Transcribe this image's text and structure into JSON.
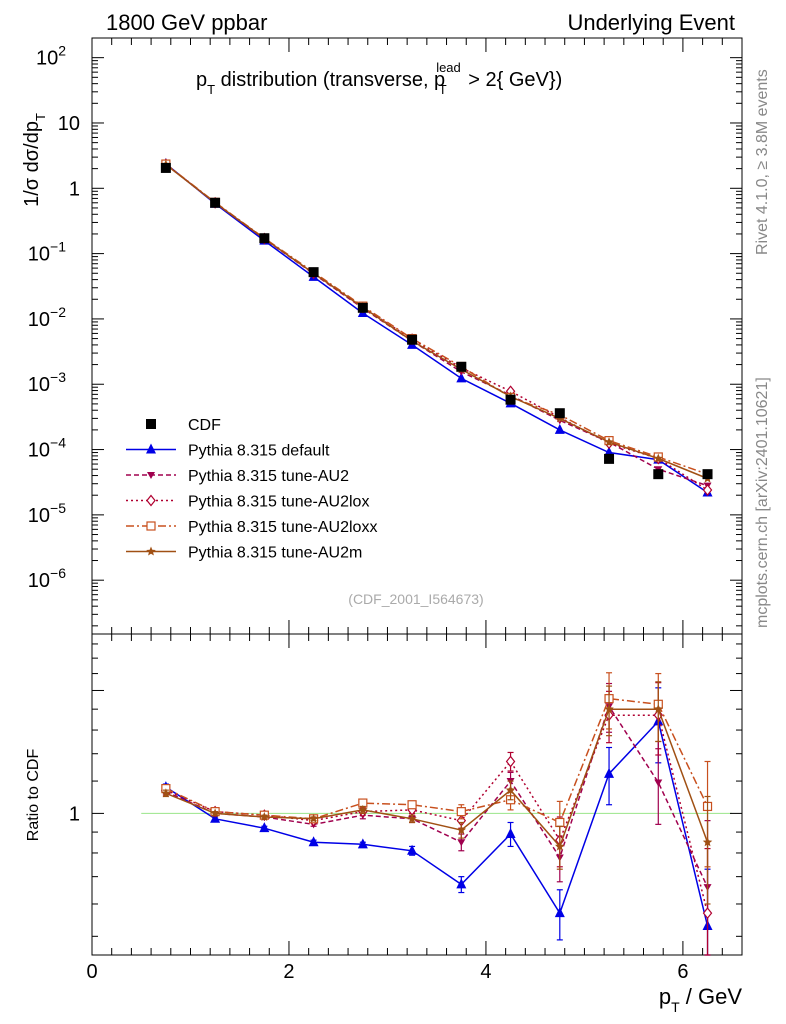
{
  "header": {
    "left": "1800 GeV ppbar",
    "right": "Underlying Event",
    "side_top": "Rivet 4.1.0, ≥ 3.8M events",
    "side_bottom": "mcplots.cern.ch [arXiv:2401.10621]"
  },
  "chart_data": [
    {
      "type": "line",
      "panel": "main",
      "title": "p_T distribution (transverse, p_T^lead > 2{ GeV})",
      "title_parts": {
        "p": "p",
        "t": "T",
        "mid": " distribution (transverse, p",
        "sup": "lead",
        "sub": "T",
        "end": " > 2{ GeV})"
      },
      "ylabel": "1/σ  dσ/dp_T",
      "yscale": "log",
      "ylim": [
        1.5e-07,
        200
      ],
      "xlim": [
        0,
        6.6
      ],
      "yticks": [
        {
          "v": 100,
          "m": "10",
          "e": "2"
        },
        {
          "v": 10,
          "m": "10",
          "e": ""
        },
        {
          "v": 1,
          "m": "1",
          "e": ""
        },
        {
          "v": 0.1,
          "m": "10",
          "e": "−1"
        },
        {
          "v": 0.01,
          "m": "10",
          "e": "−2"
        },
        {
          "v": 0.001,
          "m": "10",
          "e": "−3"
        },
        {
          "v": 0.0001,
          "m": "10",
          "e": "−4"
        },
        {
          "v": 1e-05,
          "m": "10",
          "e": "−5"
        },
        {
          "v": 1e-06,
          "m": "10",
          "e": "−6"
        }
      ],
      "watermark": "(CDF_2001_I564673)",
      "x": [
        0.75,
        1.25,
        1.75,
        2.25,
        2.75,
        3.25,
        3.75,
        4.25,
        4.75,
        5.25,
        5.75,
        6.25
      ],
      "data": {
        "name": "CDF",
        "values": [
          2.05,
          0.6,
          0.172,
          0.052,
          0.0148,
          0.0048,
          0.00185,
          0.00058,
          0.00036,
          7.2e-05,
          4.2e-05,
          4.2e-05
        ]
      },
      "series": [
        {
          "name": "Pythia 8.315 default",
          "color": "#0000e6",
          "marker": "triangle-up",
          "dash": "",
          "values": [
            2.37,
            0.58,
            0.158,
            0.044,
            0.0123,
            0.004,
            0.00123,
            0.00051,
            0.0002,
            9e-05,
            7e-05,
            2.2e-05
          ]
        },
        {
          "name": "Pythia 8.315 tune-AU2",
          "color": "#a0004e",
          "marker": "triangle-down",
          "dash": "5,3",
          "values": [
            2.31,
            0.6,
            0.168,
            0.049,
            0.0146,
            0.0046,
            0.00155,
            0.00068,
            0.00028,
            0.00013,
            5e-05,
            2.8e-05
          ]
        },
        {
          "name": "Pythia 8.315 tune-AU2lox",
          "color": "#b00030",
          "marker": "diamond-open",
          "dash": "2,3",
          "values": [
            2.33,
            0.6,
            0.17,
            0.05,
            0.015,
            0.0049,
            0.00178,
            0.00078,
            0.00031,
            0.000125,
            7.3e-05,
            2.4e-05
          ]
        },
        {
          "name": "Pythia 8.315 tune-AU2loxx",
          "color": "#c8501e",
          "marker": "square-open",
          "dash": "8,3,2,3",
          "values": [
            2.35,
            0.61,
            0.172,
            0.052,
            0.0157,
            0.005,
            0.00187,
            0.00063,
            0.00034,
            0.000137,
            7.7e-05,
            4.2e-05
          ]
        },
        {
          "name": "Pythia 8.315 tune-AU2m",
          "color": "#a05014",
          "marker": "star",
          "dash": "",
          "values": [
            2.3,
            0.6,
            0.169,
            0.05,
            0.0151,
            0.0046,
            0.00169,
            0.00065,
            0.0003,
            0.00013,
            7.3e-05,
            3.6e-05
          ]
        }
      ]
    },
    {
      "type": "line",
      "panel": "ratio",
      "ylabel": "Ratio to CDF",
      "xlabel": "p_T / GeV",
      "xlabel_parts": {
        "p": "p",
        "sub": "T",
        "rest": " / GeV"
      },
      "yscale": "log",
      "ylim": [
        0.45,
        2.75
      ],
      "xlim": [
        0,
        6.6
      ],
      "xticks": [
        {
          "v": 0,
          "label": "0"
        },
        {
          "v": 2,
          "label": "2"
        },
        {
          "v": 4,
          "label": "4"
        },
        {
          "v": 6,
          "label": "6"
        }
      ],
      "ytick_label": {
        "v": 1,
        "label": "1"
      },
      "reference_line": {
        "value": 1,
        "x_from": 0.5,
        "x_to": 6.5,
        "color": "#99e58a"
      },
      "x": [
        0.75,
        1.25,
        1.75,
        2.25,
        2.75,
        3.25,
        3.75,
        4.25,
        4.75,
        5.25,
        5.75,
        6.25
      ],
      "series": [
        {
          "name": "Pythia 8.315 default",
          "color": "#0000e6",
          "marker": "triangle-up",
          "dash": "",
          "values": [
            1.16,
            0.97,
            0.92,
            0.85,
            0.84,
            0.81,
            0.67,
            0.89,
            0.57,
            1.25,
            1.68,
            0.53
          ],
          "errors": [
            0.02,
            0.01,
            0.01,
            0.01,
            0.01,
            0.02,
            0.03,
            0.06,
            0.08,
            0.2,
            0.35,
            0.2
          ]
        },
        {
          "name": "Pythia 8.315 tune-AU2",
          "color": "#a0004e",
          "marker": "triangle-down",
          "dash": "5,3",
          "values": [
            1.13,
            1.0,
            0.98,
            0.94,
            0.99,
            0.97,
            0.85,
            1.2,
            0.78,
            1.83,
            1.19,
            0.66
          ],
          "errors": [
            0.02,
            0.01,
            0.01,
            0.01,
            0.02,
            0.02,
            0.04,
            0.06,
            0.1,
            0.25,
            0.25,
            0.3
          ]
        },
        {
          "name": "Pythia 8.315 tune-AU2lox",
          "color": "#b00030",
          "marker": "diamond-open",
          "dash": "2,3",
          "values": [
            1.14,
            1.01,
            0.99,
            0.96,
            1.01,
            1.02,
            0.96,
            1.34,
            0.86,
            1.74,
            1.74,
            0.57
          ],
          "errors": [
            0.02,
            0.01,
            0.01,
            0.01,
            0.02,
            0.02,
            0.04,
            0.07,
            0.12,
            0.25,
            0.35,
            0.25
          ]
        },
        {
          "name": "Pythia 8.315 tune-AU2loxx",
          "color": "#c8501e",
          "marker": "square-open",
          "dash": "8,3,2,3",
          "values": [
            1.15,
            1.01,
            0.99,
            0.97,
            1.06,
            1.05,
            1.01,
            1.08,
            0.95,
            1.91,
            1.85,
            1.04
          ],
          "errors": [
            0.02,
            0.01,
            0.01,
            0.01,
            0.02,
            0.02,
            0.04,
            0.06,
            0.12,
            0.3,
            0.35,
            0.3
          ]
        },
        {
          "name": "Pythia 8.315 tune-AU2m",
          "color": "#a05014",
          "marker": "star",
          "dash": "",
          "values": [
            1.12,
            1.0,
            0.98,
            0.97,
            1.02,
            0.97,
            0.91,
            1.14,
            0.83,
            1.8,
            1.8,
            0.85
          ],
          "errors": [
            0.02,
            0.01,
            0.01,
            0.01,
            0.02,
            0.02,
            0.04,
            0.06,
            0.1,
            0.25,
            0.3,
            0.25
          ]
        }
      ]
    }
  ]
}
